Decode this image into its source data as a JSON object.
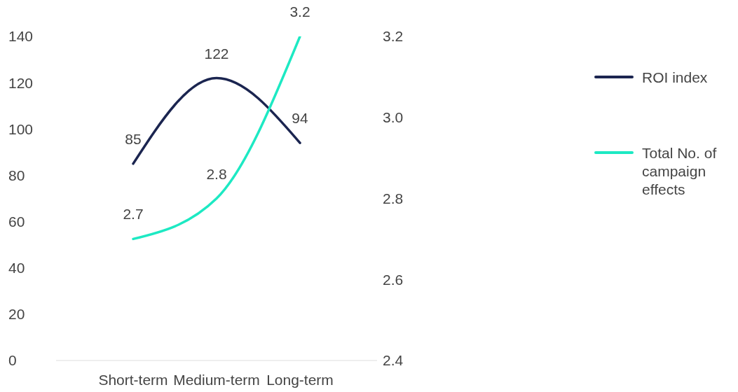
{
  "chart_data": {
    "type": "line",
    "categories": [
      "Short-term",
      "Medium-term",
      "Long-term"
    ],
    "series": [
      {
        "name": "ROI index",
        "color": "#1b2550",
        "values": [
          85,
          122,
          94
        ]
      },
      {
        "name": "Total No. of campaign effects",
        "color": "#1de9c3",
        "values": [
          2.7,
          2.8,
          3.2
        ],
        "axis": "y2"
      }
    ],
    "ylim": [
      0,
      140
    ],
    "yticks": [
      0,
      20,
      40,
      60,
      80,
      100,
      120,
      140
    ],
    "y2lim": [
      2.4,
      3.2
    ],
    "y2ticks": [
      2.4,
      2.6,
      2.8,
      {
        "value": 3,
        "label": "3.0"
      },
      3.2
    ],
    "data_labels": true,
    "legend": "right",
    "grid": false,
    "marker": "none",
    "line_style": "solid"
  }
}
